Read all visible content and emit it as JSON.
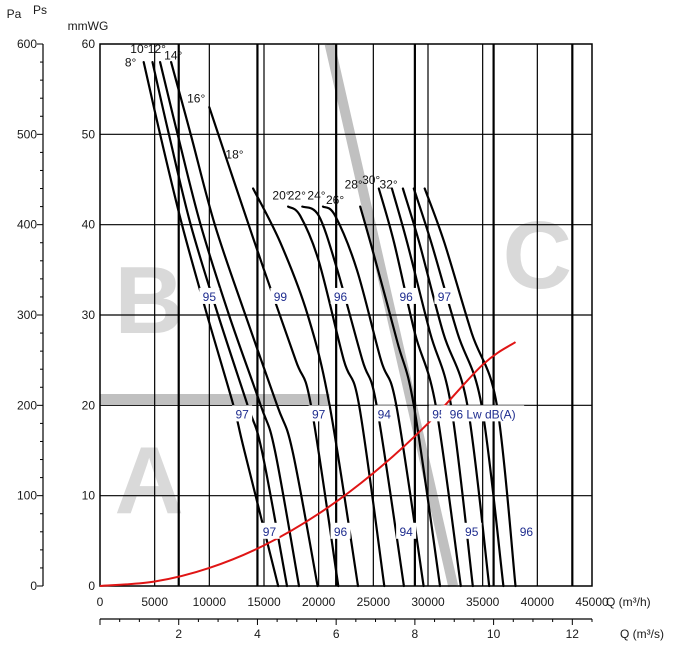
{
  "chart_data": {
    "type": "line",
    "title": "",
    "x_primary": {
      "label": "Q (m³/h)",
      "range": [
        0,
        45000
      ],
      "ticks": [
        0,
        5000,
        10000,
        15000,
        20000,
        25000,
        30000,
        35000,
        40000,
        45000
      ],
      "tick_labels": [
        "0",
        "5000",
        "10000",
        "15000",
        "20000",
        "25000",
        "30000",
        "35000",
        "40000",
        "45000"
      ]
    },
    "x_secondary": {
      "label": "Q (m³/s)",
      "range": [
        0,
        12.5
      ],
      "ticks": [
        2,
        4,
        6,
        8,
        10,
        12
      ],
      "tick_labels": [
        "2",
        "4",
        "6",
        "8",
        "10",
        "12"
      ]
    },
    "y_primary": {
      "label": "mmWG",
      "range": [
        0,
        60
      ],
      "ticks": [
        0,
        10,
        20,
        30,
        40,
        50,
        60
      ],
      "tick_labels": [
        "0",
        "10",
        "20",
        "30",
        "40",
        "50",
        "60"
      ]
    },
    "y_secondary": {
      "label": "Pa",
      "label2": "Ps",
      "range": [
        0,
        600
      ],
      "ticks": [
        0,
        100,
        200,
        300,
        400,
        500,
        600
      ],
      "tick_labels": [
        "0",
        "100",
        "200",
        "300",
        "400",
        "500",
        "600"
      ]
    },
    "grid": true,
    "series": [
      {
        "name": "8°",
        "x": [
          4000,
          5500,
          7500,
          9800,
          12200,
          13200,
          16300
        ],
        "y": [
          58,
          50,
          40,
          30,
          20,
          15,
          0
        ]
      },
      {
        "name": "10°",
        "x": [
          4800,
          6300,
          8300,
          10800,
          13500,
          14800,
          17100
        ],
        "y": [
          58,
          50,
          40,
          30,
          20,
          15,
          0
        ]
      },
      {
        "name": "12°",
        "x": [
          5500,
          7100,
          9200,
          11800,
          14700,
          16000,
          18200
        ],
        "y": [
          58,
          50,
          40,
          30,
          20,
          15,
          0
        ]
      },
      {
        "name": "14°",
        "x": [
          6500,
          8300,
          10500,
          13300,
          16200,
          17600,
          19900
        ],
        "y": [
          58,
          50,
          40,
          30,
          20,
          15,
          0
        ]
      },
      {
        "name": "16°",
        "x": [
          10000,
          12200,
          15000,
          17900,
          19300,
          21800
        ],
        "y": [
          53,
          45,
          35,
          25,
          20,
          0
        ]
      },
      {
        "name": "18°",
        "x": [
          14000,
          16500,
          19000,
          21000,
          23600
        ],
        "y": [
          44,
          38,
          30,
          20,
          0
        ]
      },
      {
        "name": "20°",
        "x": [
          17200,
          18300,
          20000,
          22300,
          23700,
          26000
        ],
        "y": [
          42,
          41,
          36,
          25,
          20,
          0
        ]
      },
      {
        "name": "22°",
        "x": [
          18500,
          20000,
          21700,
          24000,
          25300,
          27800
        ],
        "y": [
          42,
          41,
          35,
          25,
          20,
          0
        ]
      },
      {
        "name": "24°",
        "x": [
          20400,
          21500,
          23500,
          25700,
          27100,
          29600
        ],
        "y": [
          42,
          41,
          35,
          25,
          20,
          0
        ]
      },
      {
        "name": "26°",
        "x": [
          23800,
          25200,
          27200,
          28700,
          31100
        ],
        "y": [
          42,
          36,
          27,
          20,
          0
        ]
      },
      {
        "name": "28°",
        "x": [
          25500,
          26900,
          28800,
          30700,
          33000
        ],
        "y": [
          44,
          38,
          28,
          20,
          0
        ]
      },
      {
        "name": "30°",
        "x": [
          26700,
          28100,
          30200,
          32100,
          34100
        ],
        "y": [
          44,
          38,
          28,
          20,
          0
        ]
      },
      {
        "name": "32°",
        "x": [
          27700,
          29200,
          31400,
          33600,
          35600
        ],
        "y": [
          44,
          38,
          28,
          20,
          0
        ]
      },
      {
        "name": "",
        "x": [
          28700,
          30300,
          32700,
          34900,
          36900
        ],
        "y": [
          44,
          38,
          28,
          20,
          0
        ]
      },
      {
        "name": "",
        "x": [
          29700,
          31500,
          34000,
          36300,
          38000
        ],
        "y": [
          44,
          38,
          28,
          20,
          0
        ]
      }
    ],
    "system_curve": {
      "color": "#e01515",
      "x": [
        0,
        5000,
        10000,
        15000,
        20000,
        25000,
        30000,
        35000,
        38000
      ],
      "y": [
        0,
        0.5,
        2,
        4.5,
        8,
        12.5,
        18,
        24.5,
        27
      ]
    },
    "zones": {
      "letters": [
        "A",
        "B",
        "C"
      ],
      "divider_color": "#c0c0c0"
    },
    "noise_labels": [
      {
        "text": "95",
        "x": 10000,
        "y": 32
      },
      {
        "text": "99",
        "x": 16500,
        "y": 32
      },
      {
        "text": "96",
        "x": 22000,
        "y": 32
      },
      {
        "text": "96",
        "x": 28000,
        "y": 32
      },
      {
        "text": "97",
        "x": 31500,
        "y": 32
      },
      {
        "text": "97",
        "x": 13000,
        "y": 19
      },
      {
        "text": "97",
        "x": 20000,
        "y": 19
      },
      {
        "text": "94",
        "x": 26000,
        "y": 19
      },
      {
        "text": "95",
        "x": 31000,
        "y": 19
      },
      {
        "text": "96 Lw dB(A)",
        "x": 35000,
        "y": 19
      },
      {
        "text": "97",
        "x": 15500,
        "y": 6
      },
      {
        "text": "96",
        "x": 22000,
        "y": 6
      },
      {
        "text": "94",
        "x": 28000,
        "y": 6
      },
      {
        "text": "95",
        "x": 34000,
        "y": 6
      },
      {
        "text": "96",
        "x": 39000,
        "y": 6
      }
    ],
    "angle_labels": [
      {
        "text": "8°",
        "x": 2800,
        "y": 57.5
      },
      {
        "text": "10°",
        "x": 3600,
        "y": 59
      },
      {
        "text": "12°",
        "x": 5200,
        "y": 59
      },
      {
        "text": "14°",
        "x": 6700,
        "y": 58.3
      },
      {
        "text": "16°",
        "x": 8800,
        "y": 53.5
      },
      {
        "text": "18°",
        "x": 12300,
        "y": 47.3
      },
      {
        "text": "20°",
        "x": 16600,
        "y": 42.8
      },
      {
        "text": "22°",
        "x": 18000,
        "y": 42.8
      },
      {
        "text": "24°",
        "x": 19800,
        "y": 42.8
      },
      {
        "text": "26°",
        "x": 21500,
        "y": 42.3
      },
      {
        "text": "28°",
        "x": 23200,
        "y": 44
      },
      {
        "text": "30°",
        "x": 24800,
        "y": 44.5
      },
      {
        "text": "32°",
        "x": 26400,
        "y": 44
      }
    ]
  }
}
